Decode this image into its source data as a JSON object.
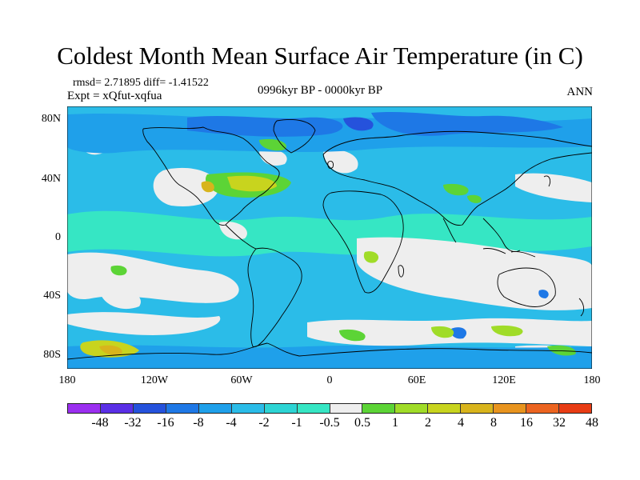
{
  "title": "Coldest Month Mean Surface Air Temperature (in C)",
  "stats": "rmsd= 2.71895 diff= -1.41522",
  "experiment": "Expt = xQfut-xqfua",
  "period": "0996kyr BP - 0000kyr BP",
  "season": "ANN",
  "axes": {
    "lat_labels": [
      "80N",
      "40N",
      "0",
      "40S",
      "80S"
    ],
    "lon_labels": [
      "180",
      "120W",
      "60W",
      "0",
      "60E",
      "120E",
      "180"
    ]
  },
  "colorbar": {
    "labels": [
      "-48",
      "-32",
      "-16",
      "-8",
      "-4",
      "-2",
      "-1",
      "-0.5",
      "0.5",
      "1",
      "2",
      "4",
      "8",
      "16",
      "32",
      "48"
    ],
    "colors": [
      "#9b2ff0",
      "#5a2fe6",
      "#2552dc",
      "#1e78e6",
      "#1fa0ea",
      "#2bbce8",
      "#2dd4d4",
      "#36e6c4",
      "#eeeeee",
      "#5cd436",
      "#a0dc28",
      "#c8d41e",
      "#d8b41c",
      "#e8941e",
      "#ec6420",
      "#e83c14"
    ]
  },
  "map_colors": {
    "ocean_base": "#2bbce8",
    "neutral": "#eeeeee",
    "mild_cool": "#36e6c4",
    "cool": "#1fa0ea",
    "cold": "#1e78e6",
    "very_cold": "#2552dc",
    "warm1": "#5cd436",
    "warm2": "#a0dc28",
    "warm3": "#c8d41e",
    "warm4": "#d8b41c",
    "coastline": "#000000"
  }
}
